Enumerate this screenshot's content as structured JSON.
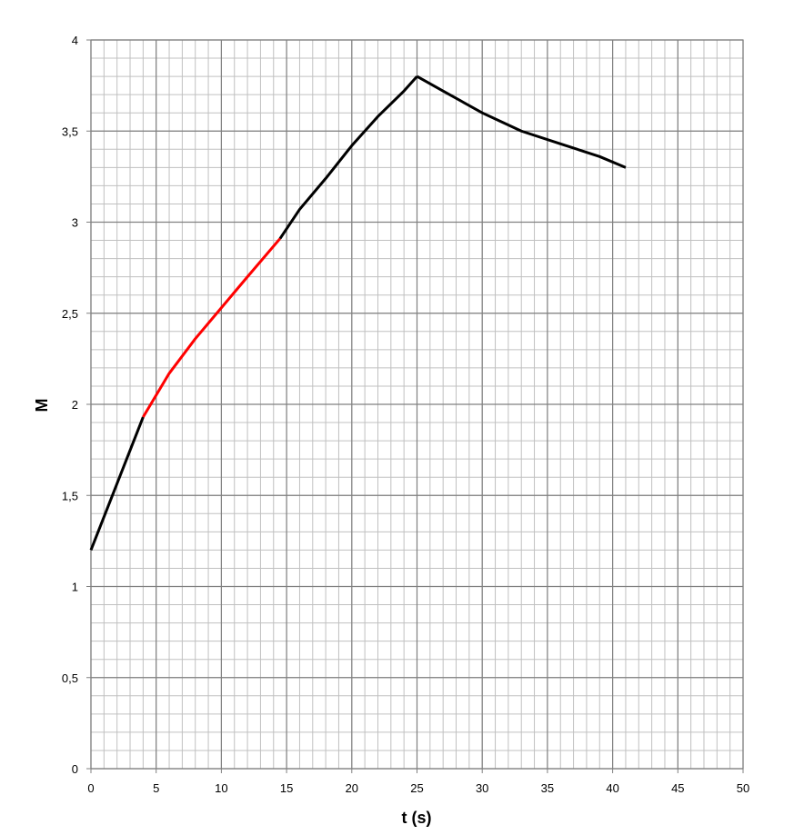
{
  "chart_data": {
    "type": "line",
    "x_label": "t (s)",
    "y_label": "M",
    "xlim": [
      0,
      50
    ],
    "ylim": [
      0,
      4
    ],
    "xticks": [
      0,
      5,
      10,
      15,
      20,
      25,
      30,
      35,
      40,
      45,
      50
    ],
    "yticks": [
      0,
      {
        "value": 0.5,
        "label": "0,5"
      },
      1,
      {
        "value": 1.5,
        "label": "1,5"
      },
      2,
      {
        "value": 2.5,
        "label": "2,5"
      },
      3,
      {
        "value": 3.5,
        "label": "3,5"
      },
      4
    ],
    "grid": true,
    "minor_grid": {
      "x": 1,
      "y": 0.1
    },
    "series": [
      {
        "color": "#000000",
        "x": [
          0,
          4
        ],
        "values": [
          1.2,
          1.93
        ]
      },
      {
        "color": "#ff0000",
        "x": [
          4,
          6,
          8,
          10,
          12,
          14.5
        ],
        "values": [
          1.93,
          2.17,
          2.36,
          2.53,
          2.7,
          2.91
        ]
      },
      {
        "color": "#000000",
        "x": [
          14.5,
          16,
          18,
          20,
          22,
          24,
          25
        ],
        "values": [
          2.91,
          3.07,
          3.24,
          3.42,
          3.58,
          3.72,
          3.8
        ]
      },
      {
        "color": "#000000",
        "x": [
          25,
          27,
          30,
          33,
          36,
          39,
          41
        ],
        "values": [
          3.8,
          3.72,
          3.6,
          3.5,
          3.43,
          3.36,
          3.3
        ]
      }
    ]
  }
}
